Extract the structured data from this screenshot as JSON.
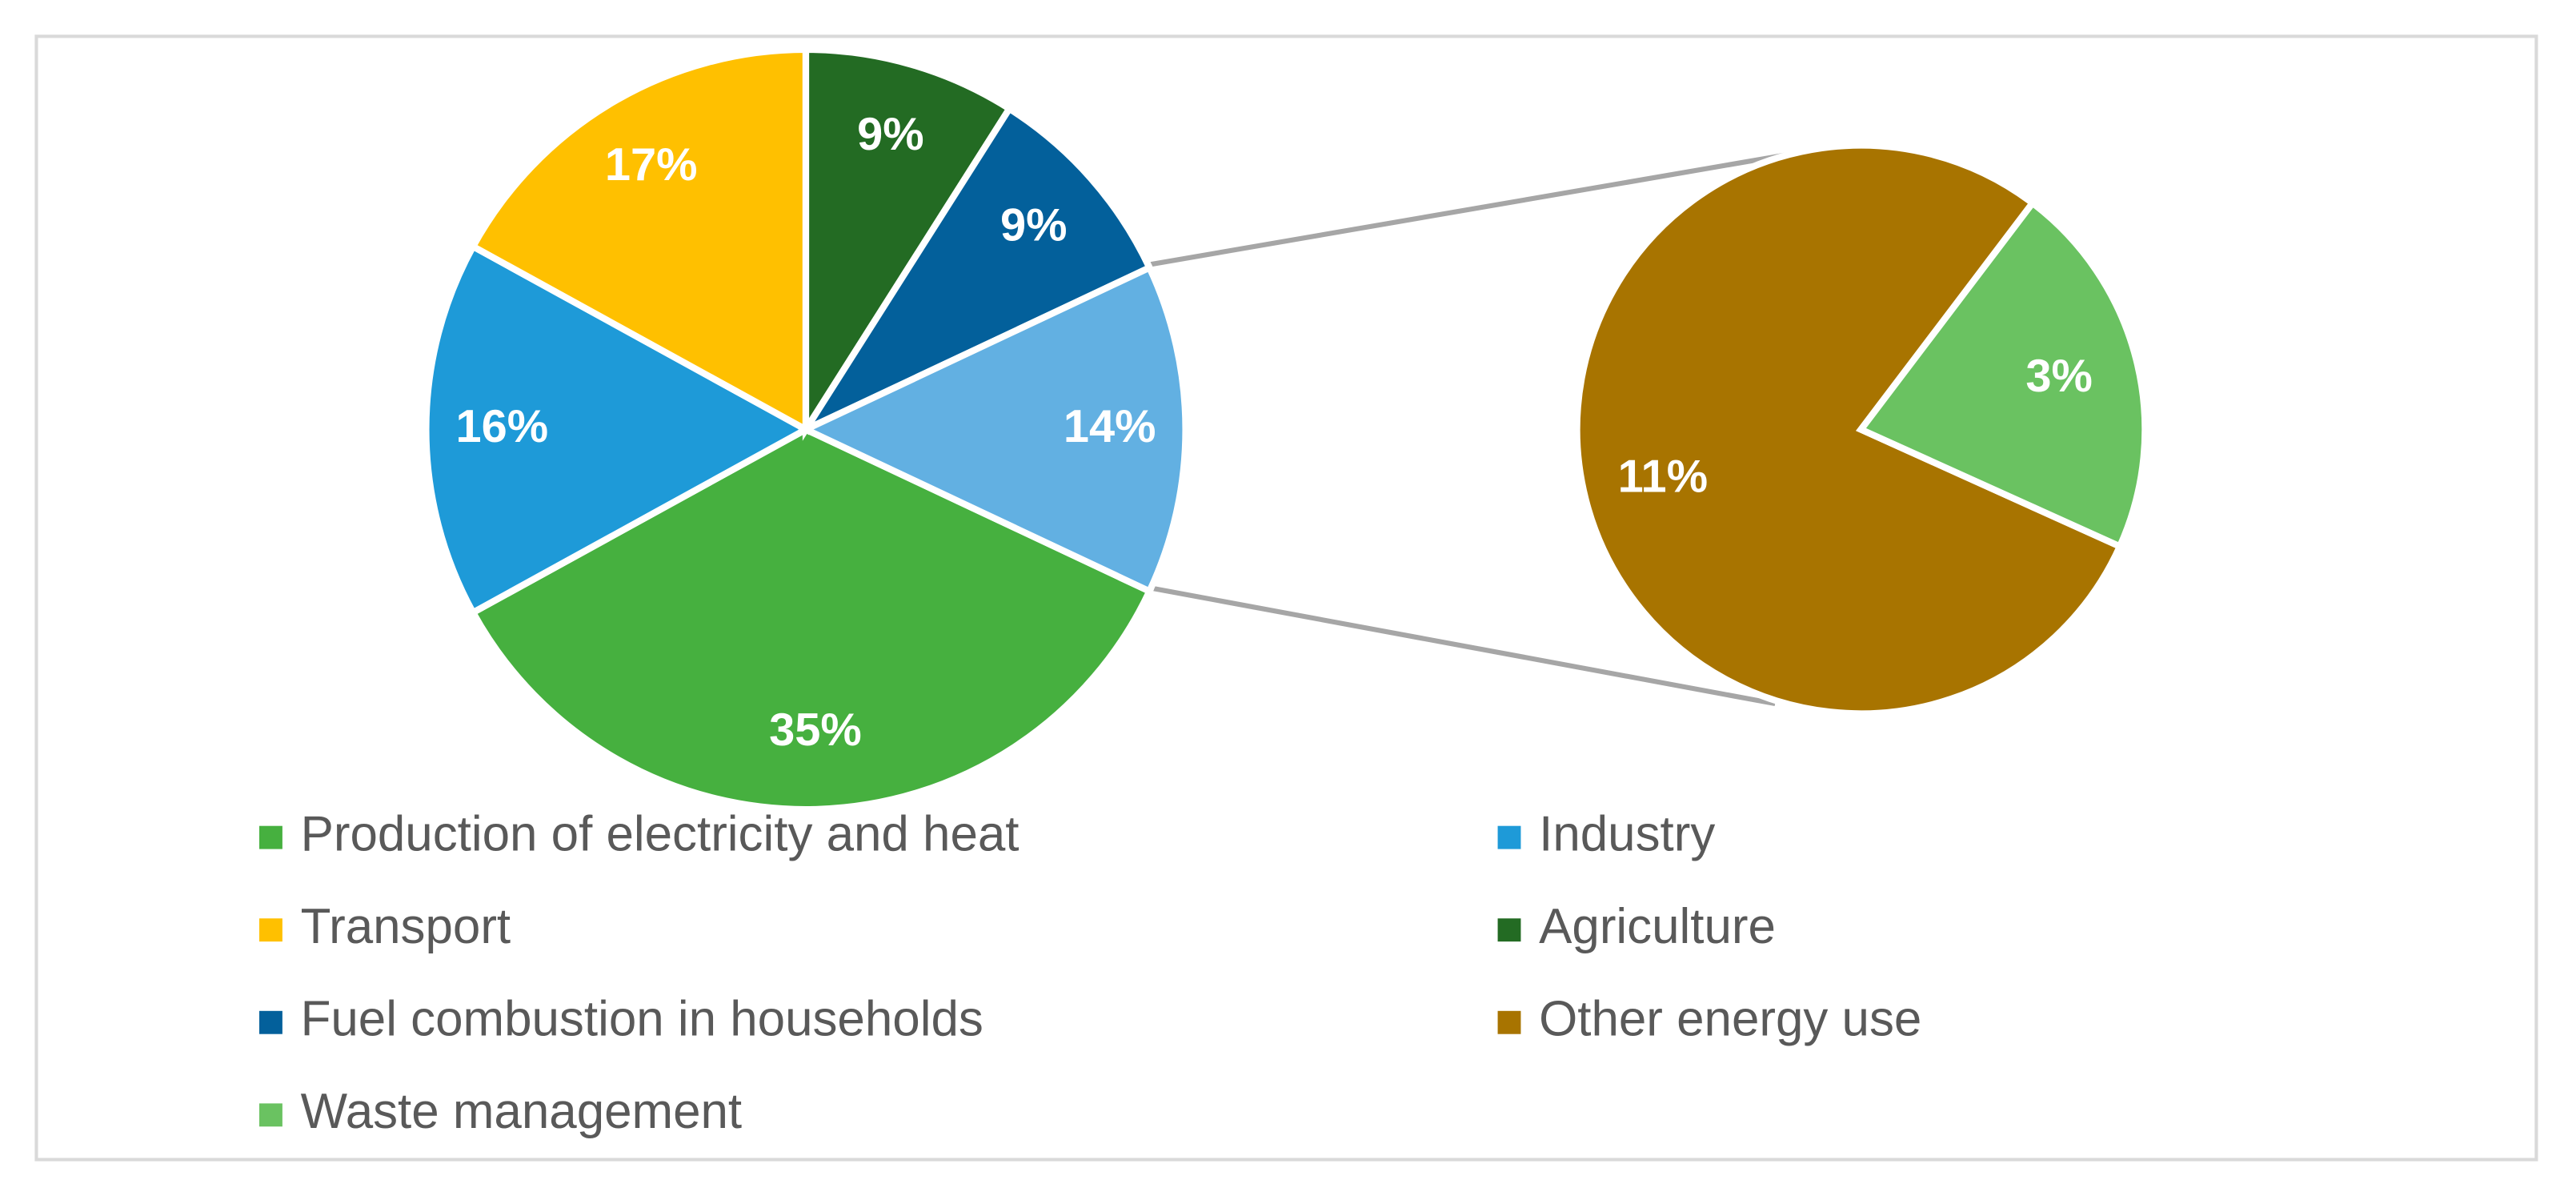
{
  "chart_data": {
    "type": "pie-of-pie",
    "categories": [
      "Production of electricity and heat",
      "Industry",
      "Transport",
      "Agriculture",
      "Fuel combustion in households"
    ],
    "values": [
      35,
      16,
      17,
      9,
      9
    ],
    "value_labels": [
      "35%",
      "16%",
      "17%",
      "9%",
      "9%"
    ],
    "colors": [
      "#46b03f",
      "#1e9ad8",
      "#ffc000",
      "#236b23",
      "#03609b"
    ],
    "other": {
      "value": 14,
      "value_label": "14%",
      "color": "#62b0e2"
    },
    "secondary": {
      "categories": [
        "Other energy use",
        "Waste management"
      ],
      "values": [
        11,
        3
      ],
      "value_labels": [
        "11%",
        "3%"
      ],
      "colors": [
        "#a87400",
        "#6ac261"
      ]
    },
    "legend": "bottom"
  }
}
